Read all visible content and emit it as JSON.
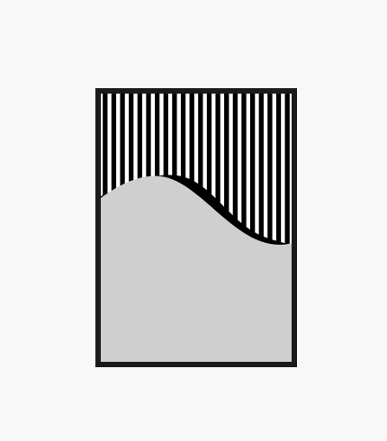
{
  "scene": {
    "background_color": "#f8f8f8",
    "frame_color": "#1a1a1a",
    "stripe_color": "#000000",
    "stripe_gap_color": "#ffffff",
    "hill_color": "#cfcfcf",
    "shadow_color": "#000000",
    "stripe_count": 22,
    "orientation": "portrait",
    "elements": [
      "black-frame",
      "vertical-stripes",
      "grey-wave-hill",
      "black-wave-shadow"
    ]
  }
}
